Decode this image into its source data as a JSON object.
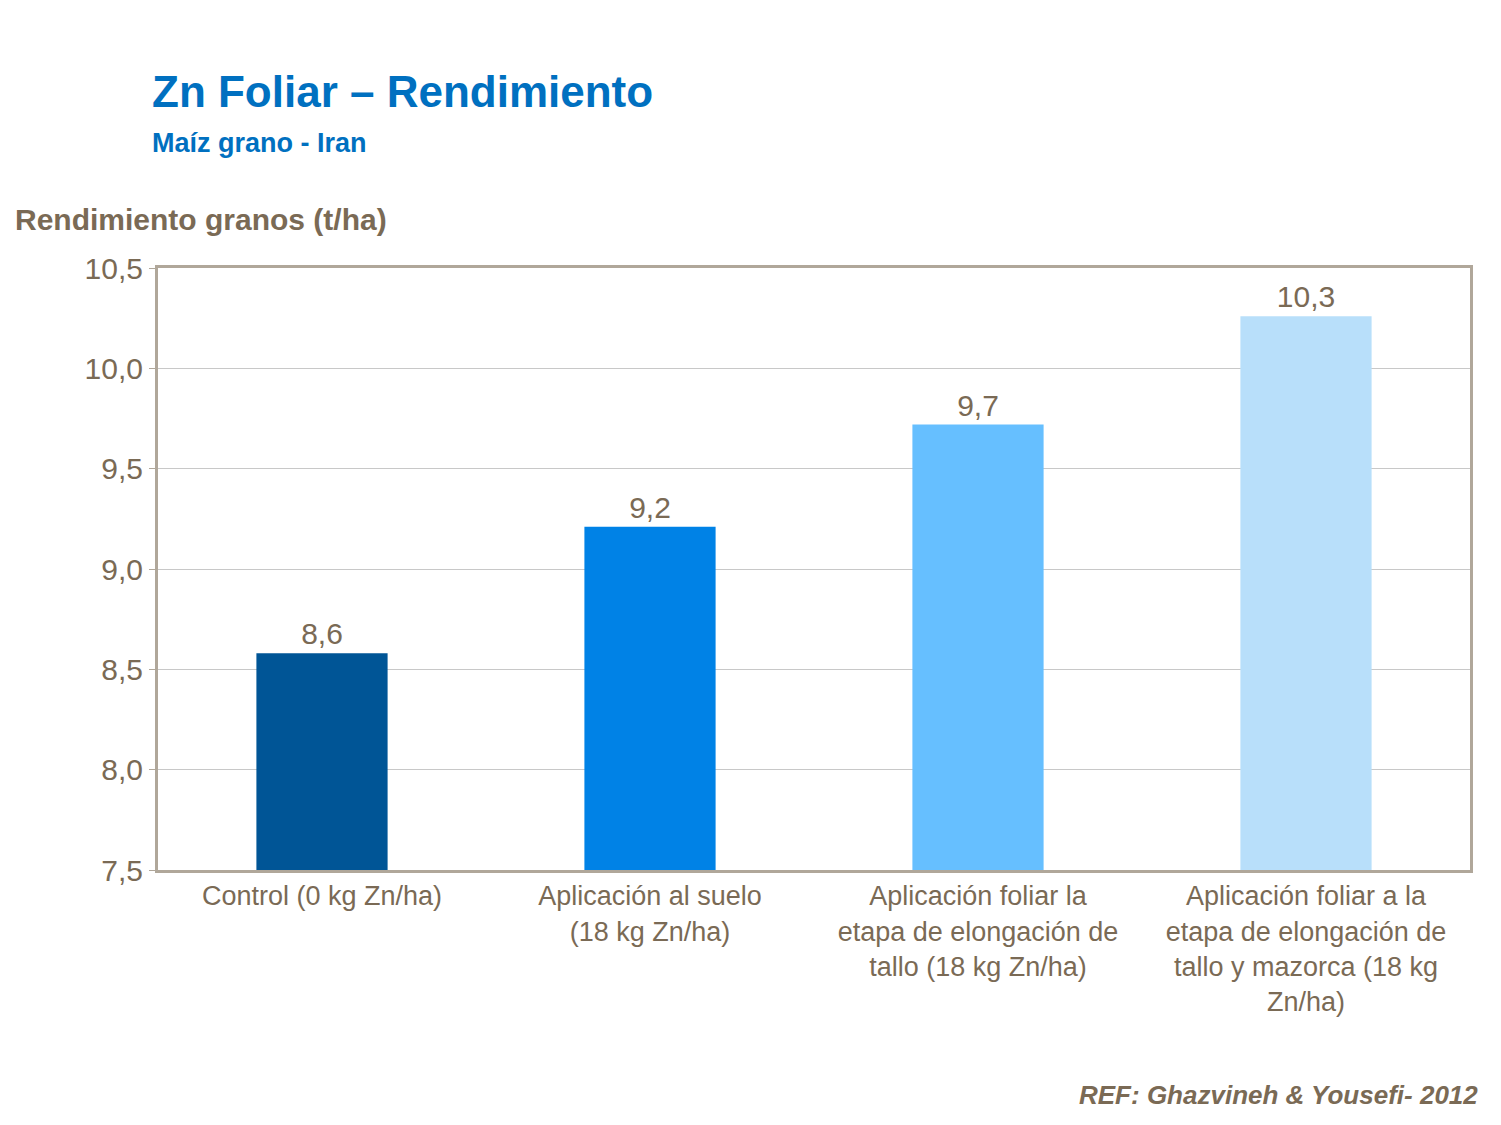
{
  "chart_data": {
    "type": "bar",
    "title": "Zn Foliar – Rendimiento",
    "subtitle": "Maíz grano - Iran",
    "y_label": "Rendimiento granos (t/ha)",
    "annotation": "REF: Ghazvineh & Yousefi- 2012",
    "categories": [
      "Control (0 kg Zn/ha)",
      "Aplicación al suelo (18 kg Zn/ha)",
      "Aplicación foliar la etapa de elongación de tallo (18 kg Zn/ha)",
      "Aplicación foliar a la etapa de elongación de tallo y mazorca (18 kg Zn/ha)"
    ],
    "values": [
      8.58,
      9.21,
      9.72,
      10.26
    ],
    "value_labels": [
      "8,6",
      "9,2",
      "9,7",
      "10,3"
    ],
    "data_labels": true,
    "colors": [
      "#005596",
      "#0082e6",
      "#66bfff",
      "#b8dffa"
    ],
    "ylim": [
      7.5,
      10.5
    ],
    "yticks": [
      {
        "value": 7.5,
        "label": "7,5"
      },
      {
        "value": 8,
        "label": "8,0"
      },
      {
        "value": 8.5,
        "label": "8,5"
      },
      {
        "value": 9,
        "label": "9,0"
      },
      {
        "value": 9.5,
        "label": "9,5"
      },
      {
        "value": 10,
        "label": "10,0"
      },
      {
        "value": 10.5,
        "label": "10,5"
      }
    ],
    "grid": true
  }
}
